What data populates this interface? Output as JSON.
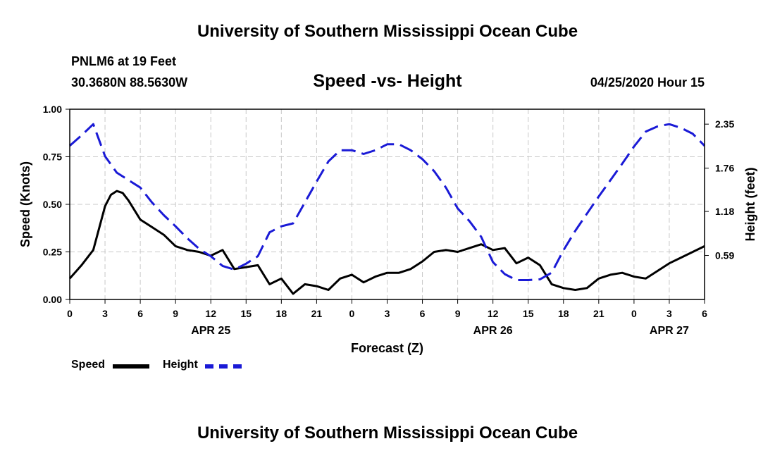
{
  "header": {
    "title": "University of Southern Mississippi Ocean Cube",
    "station": "PNLM6 at 19 Feet",
    "coordinates": "30.3680N 88.5630W",
    "chart_title": "Speed -vs- Height",
    "datetime": "04/25/2020 Hour 15"
  },
  "footer": {
    "title": "University of Southern Mississippi Ocean Cube"
  },
  "legend": {
    "speed_label": "Speed",
    "height_label": "Height"
  },
  "colors": {
    "speed": "#000000",
    "height": "#1a1ad6",
    "grid": "#c8c8c8"
  },
  "chart_data": {
    "type": "line",
    "title": "Speed -vs- Height",
    "xlabel": "Forecast (Z)",
    "ylabel": "Speed (Knots)",
    "y2label": "Height (feet)",
    "x_range": [
      0,
      54
    ],
    "x_tick_labels": [
      "0",
      "3",
      "6",
      "9",
      "12",
      "15",
      "18",
      "21",
      "0",
      "3",
      "6",
      "9",
      "12",
      "15",
      "18",
      "21",
      "0",
      "3",
      "6"
    ],
    "date_labels": [
      {
        "label": "APR 25",
        "x": 12
      },
      {
        "label": "APR 26",
        "x": 36
      },
      {
        "label": "APR 27",
        "x": 51
      }
    ],
    "ylim": [
      0,
      1.0
    ],
    "y_ticks": [
      "0.00",
      "0.25",
      "0.50",
      "0.75",
      "1.00"
    ],
    "y2lim": [
      0,
      2.55
    ],
    "y2_ticks": [
      {
        "label": "0.59",
        "value": 0.59
      },
      {
        "label": "1.18",
        "value": 1.18
      },
      {
        "label": "1.76",
        "value": 1.76
      },
      {
        "label": "2.35",
        "value": 2.35
      }
    ],
    "grid": true,
    "series": [
      {
        "name": "Speed",
        "axis": "left",
        "style": "solid",
        "x": [
          0,
          1,
          2,
          3,
          3.5,
          4,
          4.5,
          5,
          6,
          7,
          8,
          9,
          10,
          11,
          12,
          13,
          14,
          15,
          16,
          17,
          18,
          19,
          20,
          21,
          22,
          23,
          24,
          25,
          26,
          27,
          28,
          29,
          30,
          31,
          32,
          33,
          34,
          35,
          36,
          37,
          38,
          39,
          40,
          41,
          42,
          43,
          44,
          45,
          46,
          47,
          48,
          49,
          50,
          51,
          52,
          53,
          54
        ],
        "values": [
          0.11,
          0.18,
          0.26,
          0.49,
          0.55,
          0.57,
          0.56,
          0.52,
          0.42,
          0.38,
          0.34,
          0.28,
          0.26,
          0.25,
          0.23,
          0.26,
          0.16,
          0.17,
          0.18,
          0.08,
          0.11,
          0.03,
          0.08,
          0.07,
          0.05,
          0.11,
          0.13,
          0.09,
          0.12,
          0.14,
          0.14,
          0.16,
          0.2,
          0.25,
          0.26,
          0.25,
          0.27,
          0.29,
          0.26,
          0.27,
          0.19,
          0.22,
          0.18,
          0.08,
          0.06,
          0.05,
          0.06,
          0.11,
          0.13,
          0.14,
          0.12,
          0.11,
          0.15,
          0.19,
          0.22,
          0.25,
          0.28
        ]
      },
      {
        "name": "Height",
        "axis": "right",
        "style": "dashed",
        "x": [
          0,
          1,
          2,
          3,
          4,
          5,
          6,
          7,
          8,
          9,
          10,
          11,
          12,
          13,
          14,
          15,
          16,
          17,
          18,
          19,
          20,
          21,
          22,
          23,
          24,
          25,
          26,
          27,
          28,
          29,
          30,
          31,
          32,
          33,
          34,
          35,
          36,
          37,
          38,
          39,
          40,
          41,
          42,
          43,
          44,
          45,
          46,
          47,
          48,
          49,
          50,
          51,
          52,
          53,
          54
        ],
        "values": [
          2.06,
          2.2,
          2.35,
          1.92,
          1.7,
          1.6,
          1.5,
          1.3,
          1.13,
          0.98,
          0.82,
          0.68,
          0.58,
          0.45,
          0.4,
          0.48,
          0.58,
          0.9,
          0.98,
          1.02,
          1.3,
          1.58,
          1.85,
          2.0,
          2.0,
          1.95,
          2.0,
          2.08,
          2.08,
          2.0,
          1.88,
          1.72,
          1.5,
          1.22,
          1.05,
          0.84,
          0.5,
          0.34,
          0.26,
          0.26,
          0.27,
          0.36,
          0.66,
          0.92,
          1.15,
          1.38,
          1.6,
          1.82,
          2.05,
          2.25,
          2.32,
          2.35,
          2.3,
          2.22,
          2.06
        ]
      }
    ]
  }
}
